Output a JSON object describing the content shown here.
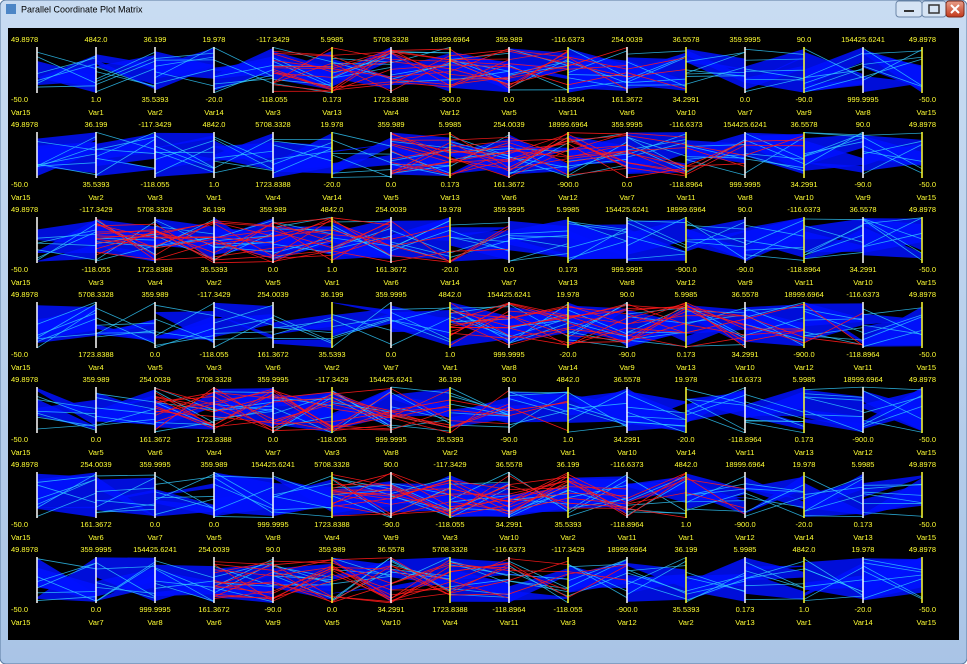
{
  "window": {
    "title": "Parallel Coordinate Plot Matrix"
  },
  "rows": [
    [
      [
        "49.8978",
        "-50.0",
        "Var15"
      ],
      [
        "4842.0",
        "1.0",
        "Var1"
      ],
      [
        "36.199",
        "35.5393",
        "Var2"
      ],
      [
        "19.978",
        "-20.0",
        "Var14"
      ],
      [
        "-117.3429",
        "-118.055",
        "Var3"
      ],
      [
        "5.9985",
        "0.173",
        "Var13"
      ],
      [
        "5708.3328",
        "1723.8388",
        "Var4"
      ],
      [
        "18999.6964",
        "-900.0",
        "Var12"
      ],
      [
        "359.989",
        "0.0",
        "Var5"
      ],
      [
        "-116.6373",
        "-118.8964",
        "Var11"
      ],
      [
        "254.0039",
        "161.3672",
        "Var6"
      ],
      [
        "36.5578",
        "34.2991",
        "Var10"
      ],
      [
        "359.9995",
        "0.0",
        "Var7"
      ],
      [
        "90.0",
        "-90.0",
        "Var9"
      ],
      [
        "154425.6241",
        "999.9995",
        "Var8"
      ],
      [
        "49.8978",
        "-50.0",
        "Var15"
      ]
    ],
    [
      [
        "49.8978",
        "-50.0",
        "Var15"
      ],
      [
        "36.199",
        "35.5393",
        "Var2"
      ],
      [
        "-117.3429",
        "-118.055",
        "Var3"
      ],
      [
        "4842.0",
        "1.0",
        "Var1"
      ],
      [
        "5708.3328",
        "1723.8388",
        "Var4"
      ],
      [
        "19.978",
        "-20.0",
        "Var14"
      ],
      [
        "359.989",
        "0.0",
        "Var5"
      ],
      [
        "5.9985",
        "0.173",
        "Var13"
      ],
      [
        "254.0039",
        "161.3672",
        "Var6"
      ],
      [
        "18999.6964",
        "-900.0",
        "Var12"
      ],
      [
        "359.9995",
        "0.0",
        "Var7"
      ],
      [
        "-116.6373",
        "-118.8964",
        "Var11"
      ],
      [
        "154425.6241",
        "999.9995",
        "Var8"
      ],
      [
        "36.5578",
        "34.2991",
        "Var10"
      ],
      [
        "90.0",
        "-90.0",
        "Var9"
      ],
      [
        "49.8978",
        "-50.0",
        "Var15"
      ]
    ],
    [
      [
        "49.8978",
        "-50.0",
        "Var15"
      ],
      [
        "-117.3429",
        "-118.055",
        "Var3"
      ],
      [
        "5708.3328",
        "1723.8388",
        "Var4"
      ],
      [
        "36.199",
        "35.5393",
        "Var2"
      ],
      [
        "359.989",
        "0.0",
        "Var5"
      ],
      [
        "4842.0",
        "1.0",
        "Var1"
      ],
      [
        "254.0039",
        "161.3672",
        "Var6"
      ],
      [
        "19.978",
        "-20.0",
        "Var14"
      ],
      [
        "359.9995",
        "0.0",
        "Var7"
      ],
      [
        "5.9985",
        "0.173",
        "Var13"
      ],
      [
        "154425.6241",
        "999.9995",
        "Var8"
      ],
      [
        "18999.6964",
        "-900.0",
        "Var12"
      ],
      [
        "90.0",
        "-90.0",
        "Var9"
      ],
      [
        "-116.6373",
        "-118.8964",
        "Var11"
      ],
      [
        "36.5578",
        "34.2991",
        "Var10"
      ],
      [
        "49.8978",
        "-50.0",
        "Var15"
      ]
    ],
    [
      [
        "49.8978",
        "-50.0",
        "Var15"
      ],
      [
        "5708.3328",
        "1723.8388",
        "Var4"
      ],
      [
        "359.989",
        "0.0",
        "Var5"
      ],
      [
        "-117.3429",
        "-118.055",
        "Var3"
      ],
      [
        "254.0039",
        "161.3672",
        "Var6"
      ],
      [
        "36.199",
        "35.5393",
        "Var2"
      ],
      [
        "359.9995",
        "0.0",
        "Var7"
      ],
      [
        "4842.0",
        "1.0",
        "Var1"
      ],
      [
        "154425.6241",
        "999.9995",
        "Var8"
      ],
      [
        "19.978",
        "-20.0",
        "Var14"
      ],
      [
        "90.0",
        "-90.0",
        "Var9"
      ],
      [
        "5.9985",
        "0.173",
        "Var13"
      ],
      [
        "36.5578",
        "34.2991",
        "Var10"
      ],
      [
        "18999.6964",
        "-900.0",
        "Var12"
      ],
      [
        "-116.6373",
        "-118.8964",
        "Var11"
      ],
      [
        "49.8978",
        "-50.0",
        "Var15"
      ]
    ],
    [
      [
        "49.8978",
        "-50.0",
        "Var15"
      ],
      [
        "359.989",
        "0.0",
        "Var5"
      ],
      [
        "254.0039",
        "161.3672",
        "Var6"
      ],
      [
        "5708.3328",
        "1723.8388",
        "Var4"
      ],
      [
        "359.9995",
        "0.0",
        "Var7"
      ],
      [
        "-117.3429",
        "-118.055",
        "Var3"
      ],
      [
        "154425.6241",
        "999.9995",
        "Var8"
      ],
      [
        "36.199",
        "35.5393",
        "Var2"
      ],
      [
        "90.0",
        "-90.0",
        "Var9"
      ],
      [
        "4842.0",
        "1.0",
        "Var1"
      ],
      [
        "36.5578",
        "34.2991",
        "Var10"
      ],
      [
        "19.978",
        "-20.0",
        "Var14"
      ],
      [
        "-116.6373",
        "-118.8964",
        "Var11"
      ],
      [
        "5.9985",
        "0.173",
        "Var13"
      ],
      [
        "18999.6964",
        "-900.0",
        "Var12"
      ],
      [
        "49.8978",
        "-50.0",
        "Var15"
      ]
    ],
    [
      [
        "49.8978",
        "-50.0",
        "Var15"
      ],
      [
        "254.0039",
        "161.3672",
        "Var6"
      ],
      [
        "359.9995",
        "0.0",
        "Var7"
      ],
      [
        "359.989",
        "0.0",
        "Var5"
      ],
      [
        "154425.6241",
        "999.9995",
        "Var8"
      ],
      [
        "5708.3328",
        "1723.8388",
        "Var4"
      ],
      [
        "90.0",
        "-90.0",
        "Var9"
      ],
      [
        "-117.3429",
        "-118.055",
        "Var3"
      ],
      [
        "36.5578",
        "34.2991",
        "Var10"
      ],
      [
        "36.199",
        "35.5393",
        "Var2"
      ],
      [
        "-116.6373",
        "-118.8964",
        "Var11"
      ],
      [
        "4842.0",
        "1.0",
        "Var1"
      ],
      [
        "18999.6964",
        "-900.0",
        "Var12"
      ],
      [
        "19.978",
        "-20.0",
        "Var14"
      ],
      [
        "5.9985",
        "0.173",
        "Var13"
      ],
      [
        "49.8978",
        "-50.0",
        "Var15"
      ]
    ],
    [
      [
        "49.8978",
        "-50.0",
        "Var15"
      ],
      [
        "359.9995",
        "0.0",
        "Var7"
      ],
      [
        "154425.6241",
        "999.9995",
        "Var8"
      ],
      [
        "254.0039",
        "161.3672",
        "Var6"
      ],
      [
        "90.0",
        "-90.0",
        "Var9"
      ],
      [
        "359.989",
        "0.0",
        "Var5"
      ],
      [
        "36.5578",
        "34.2991",
        "Var10"
      ],
      [
        "5708.3328",
        "1723.8388",
        "Var4"
      ],
      [
        "-116.6373",
        "-118.8964",
        "Var11"
      ],
      [
        "-117.3429",
        "-118.055",
        "Var3"
      ],
      [
        "18999.6964",
        "-900.0",
        "Var12"
      ],
      [
        "36.199",
        "35.5393",
        "Var2"
      ],
      [
        "5.9985",
        "0.173",
        "Var13"
      ],
      [
        "4842.0",
        "1.0",
        "Var1"
      ],
      [
        "19.978",
        "-20.0",
        "Var14"
      ],
      [
        "49.8978",
        "-50.0",
        "Var15"
      ]
    ]
  ]
}
